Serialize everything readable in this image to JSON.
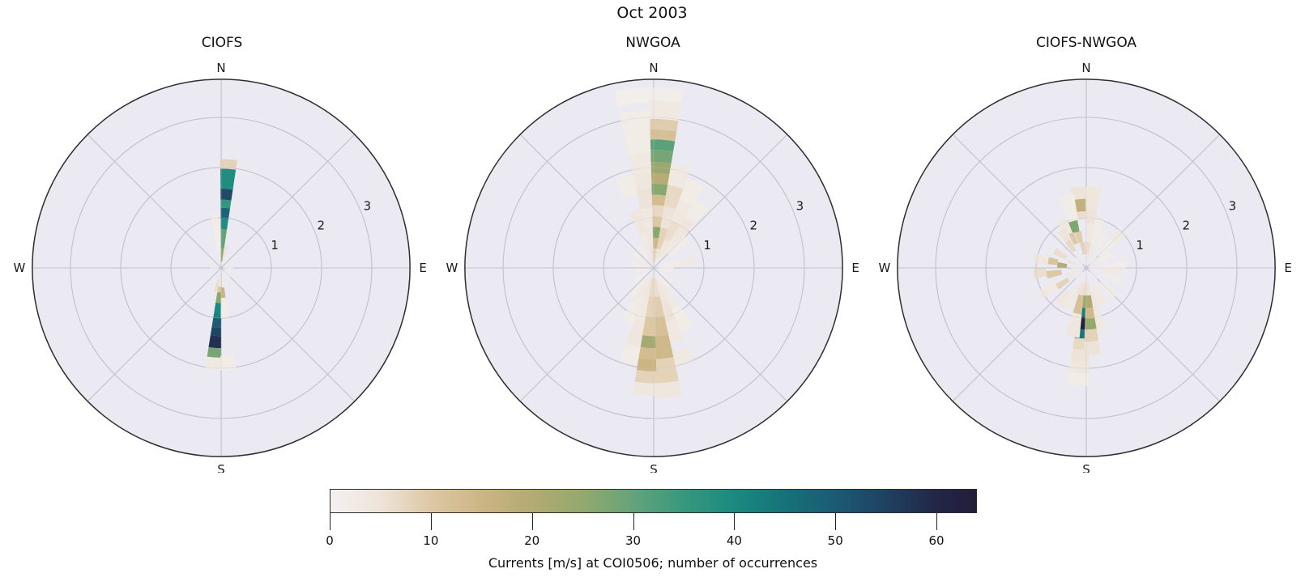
{
  "figure": {
    "suptitle": "Oct 2003"
  },
  "style": {
    "plot_bg": "#ebeaf2",
    "grid_color": "#c3c2cb",
    "ring_color": "#2e2e2e",
    "text_color": "#1a1a1a"
  },
  "colorbar": {
    "label": "Currents [m/s] at COI0506; number of occurrences",
    "ticks": [
      0,
      10,
      20,
      30,
      40,
      50,
      60
    ],
    "vmin": 0,
    "vmax": 64,
    "stops": [
      [
        0.0,
        "#f4f1f1"
      ],
      [
        0.08,
        "#eee3d8"
      ],
      [
        0.156,
        "#ddc8a4"
      ],
      [
        0.23,
        "#cdb685"
      ],
      [
        0.3125,
        "#b3aa72"
      ],
      [
        0.39,
        "#93a96d"
      ],
      [
        0.469,
        "#64a37a"
      ],
      [
        0.55,
        "#35987e"
      ],
      [
        0.625,
        "#1b8a80"
      ],
      [
        0.7,
        "#157379"
      ],
      [
        0.781,
        "#1c5b74"
      ],
      [
        0.86,
        "#1f4260"
      ],
      [
        0.9375,
        "#232647"
      ],
      [
        1.0,
        "#221e3a"
      ]
    ]
  },
  "chart_data": [
    {
      "type": "polar_heatmap_rose",
      "title": "CIOFS",
      "compass": [
        "N",
        "E",
        "S",
        "W"
      ],
      "r_ticks": [
        1,
        2,
        3
      ],
      "r_max": 3.76,
      "r_units": "m/s",
      "value_units": "occurrences",
      "bin_width_deg": 9,
      "cell_format": [
        "direction_deg",
        "r0",
        "r1",
        "count"
      ],
      "cells": [
        [
          4,
          0.0,
          0.12,
          5
        ],
        [
          4,
          0.12,
          0.39,
          25
        ],
        [
          4,
          0.39,
          0.77,
          30
        ],
        [
          4,
          0.77,
          0.98,
          39
        ],
        [
          4,
          0.98,
          1.2,
          48
        ],
        [
          4,
          1.2,
          1.36,
          36
        ],
        [
          4,
          1.36,
          1.58,
          53
        ],
        [
          4,
          1.58,
          1.98,
          39
        ],
        [
          4,
          1.98,
          2.17,
          8
        ],
        [
          353,
          0.75,
          1.05,
          2
        ],
        [
          353,
          0.35,
          0.75,
          1
        ],
        [
          13,
          0.15,
          0.45,
          5
        ],
        [
          184.5,
          0.0,
          0.2,
          4
        ],
        [
          184.5,
          0.2,
          0.37,
          3
        ],
        [
          184.5,
          0.37,
          0.49,
          10
        ],
        [
          184.5,
          0.49,
          0.7,
          26
        ],
        [
          184.5,
          0.7,
          0.89,
          40
        ],
        [
          184.5,
          0.89,
          1.0,
          41
        ],
        [
          184.5,
          1.0,
          1.19,
          50
        ],
        [
          184.5,
          1.19,
          1.36,
          54
        ],
        [
          184.5,
          1.36,
          1.6,
          58
        ],
        [
          184.5,
          1.6,
          1.79,
          28
        ],
        [
          184.5,
          1.79,
          2.03,
          3
        ],
        [
          176,
          0.39,
          0.6,
          15
        ],
        [
          176,
          0.6,
          1.0,
          2
        ],
        [
          176,
          1.75,
          2.05,
          2
        ],
        [
          193,
          0.22,
          0.5,
          6
        ],
        [
          90,
          0.05,
          0.25,
          1.5
        ],
        [
          270,
          0.05,
          0.22,
          1.5
        ],
        [
          300,
          0.08,
          0.28,
          2
        ],
        [
          135,
          0.08,
          0.25,
          1
        ]
      ]
    },
    {
      "type": "polar_heatmap_rose",
      "title": "NWGOA",
      "compass": [
        "N",
        "E",
        "S",
        "W"
      ],
      "r_ticks": [
        1,
        2,
        3
      ],
      "r_max": 3.76,
      "r_units": "m/s",
      "value_units": "occurrences",
      "bin_width_deg": 11,
      "cell_format": [
        "direction_deg",
        "r0",
        "r1",
        "count"
      ],
      "cells": [
        [
          4,
          0.0,
          0.17,
          8
        ],
        [
          4,
          0.17,
          0.39,
          8
        ],
        [
          4,
          0.39,
          0.6,
          14
        ],
        [
          4,
          0.6,
          0.82,
          26
        ],
        [
          4,
          0.82,
          1.03,
          10
        ],
        [
          4,
          1.03,
          1.25,
          7
        ],
        [
          4,
          1.25,
          1.46,
          13
        ],
        [
          4,
          1.46,
          1.68,
          26
        ],
        [
          4,
          1.68,
          1.89,
          19
        ],
        [
          4,
          1.89,
          2.11,
          24
        ],
        [
          4,
          2.11,
          2.35,
          28
        ],
        [
          4,
          2.35,
          2.56,
          31
        ],
        [
          4,
          2.56,
          2.76,
          12
        ],
        [
          4,
          2.76,
          2.97,
          9
        ],
        [
          4,
          2.97,
          3.34,
          3
        ],
        [
          4,
          3.34,
          3.59,
          1.5
        ],
        [
          353,
          0.0,
          0.4,
          5
        ],
        [
          353,
          0.4,
          0.8,
          4
        ],
        [
          353,
          0.8,
          1.2,
          3
        ],
        [
          353,
          1.2,
          1.6,
          5
        ],
        [
          353,
          1.6,
          1.9,
          4
        ],
        [
          353,
          1.9,
          2.3,
          3
        ],
        [
          353,
          2.3,
          2.75,
          2
        ],
        [
          353,
          2.75,
          3.15,
          2
        ],
        [
          353,
          3.3,
          3.6,
          1
        ],
        [
          342,
          0.3,
          0.7,
          3
        ],
        [
          342,
          0.7,
          1.2,
          4
        ],
        [
          342,
          1.5,
          1.9,
          2
        ],
        [
          326,
          0.2,
          0.55,
          2
        ],
        [
          304,
          0.2,
          0.5,
          2
        ],
        [
          281,
          0.15,
          0.45,
          2
        ],
        [
          259,
          0.1,
          0.35,
          1.5
        ],
        [
          236,
          0.1,
          0.4,
          1.5
        ],
        [
          15,
          0.17,
          0.39,
          5
        ],
        [
          15,
          0.39,
          0.82,
          8
        ],
        [
          15,
          0.82,
          1.25,
          5
        ],
        [
          15,
          1.25,
          1.68,
          7
        ],
        [
          15,
          1.68,
          2.1,
          3
        ],
        [
          26,
          0.2,
          0.6,
          4
        ],
        [
          26,
          0.6,
          1.0,
          6
        ],
        [
          26,
          1.0,
          1.45,
          3
        ],
        [
          26,
          1.45,
          1.9,
          2
        ],
        [
          37,
          0.3,
          0.7,
          3
        ],
        [
          37,
          0.7,
          1.2,
          4
        ],
        [
          37,
          1.2,
          1.6,
          2
        ],
        [
          49,
          0.4,
          0.9,
          2
        ],
        [
          79,
          0.15,
          0.5,
          1.5
        ],
        [
          79,
          0.5,
          0.85,
          3
        ],
        [
          90,
          0.1,
          0.4,
          1.5
        ],
        [
          101,
          0.1,
          0.35,
          1.5
        ],
        [
          124,
          0.15,
          0.45,
          2
        ],
        [
          146,
          0.2,
          0.5,
          2
        ],
        [
          184,
          0.0,
          0.2,
          5
        ],
        [
          184,
          0.2,
          0.58,
          7
        ],
        [
          184,
          0.58,
          0.98,
          8
        ],
        [
          184,
          0.98,
          1.36,
          10
        ],
        [
          184,
          1.36,
          1.6,
          22
        ],
        [
          184,
          1.6,
          1.82,
          13
        ],
        [
          184,
          1.82,
          2.06,
          15
        ],
        [
          184,
          2.06,
          2.3,
          8
        ],
        [
          184,
          2.3,
          2.54,
          4
        ],
        [
          173,
          0.2,
          0.58,
          6
        ],
        [
          173,
          0.58,
          0.98,
          9
        ],
        [
          173,
          0.98,
          1.36,
          12
        ],
        [
          173,
          1.36,
          1.82,
          14
        ],
        [
          173,
          1.82,
          2.3,
          8
        ],
        [
          173,
          2.3,
          2.6,
          4
        ],
        [
          162,
          0.3,
          0.7,
          4
        ],
        [
          162,
          0.7,
          1.1,
          5
        ],
        [
          162,
          1.1,
          1.55,
          3
        ],
        [
          162,
          1.7,
          2.0,
          3
        ],
        [
          151,
          0.4,
          0.9,
          3
        ],
        [
          151,
          0.9,
          1.4,
          2
        ],
        [
          195,
          0.2,
          0.6,
          4
        ],
        [
          195,
          0.6,
          1.1,
          3
        ],
        [
          195,
          1.1,
          1.6,
          4
        ],
        [
          195,
          1.6,
          1.95,
          2
        ],
        [
          207,
          0.3,
          0.8,
          3
        ],
        [
          207,
          0.8,
          1.2,
          2
        ],
        [
          218,
          0.3,
          0.7,
          2
        ]
      ]
    },
    {
      "type": "polar_heatmap_rose",
      "title": "CIOFS-NWGOA",
      "compass": [
        "N",
        "E",
        "S",
        "W"
      ],
      "r_ticks": [
        1,
        2,
        3
      ],
      "r_max": 3.76,
      "r_units": "m/s",
      "value_units": "occurrences",
      "bin_width_deg": 11,
      "cell_format": [
        "direction_deg",
        "r0",
        "r1",
        "count"
      ],
      "cells": [
        [
          354,
          0.97,
          1.13,
          6
        ],
        [
          354,
          1.13,
          1.38,
          17
        ],
        [
          354,
          1.38,
          1.62,
          5
        ],
        [
          351,
          0.27,
          0.52,
          8
        ],
        [
          347,
          0.52,
          0.74,
          9
        ],
        [
          344,
          0.74,
          0.97,
          27
        ],
        [
          345,
          0.97,
          1.5,
          2
        ],
        [
          335,
          0.52,
          0.76,
          10
        ],
        [
          333,
          0.76,
          1.1,
          3
        ],
        [
          327,
          0.5,
          0.9,
          5
        ],
        [
          325,
          0.4,
          0.65,
          7
        ],
        [
          5,
          0.27,
          0.52,
          6
        ],
        [
          5,
          0.52,
          0.89,
          3
        ],
        [
          5,
          0.89,
          1.13,
          5
        ],
        [
          5,
          1.13,
          1.62,
          4
        ],
        [
          16,
          0.2,
          0.5,
          3
        ],
        [
          16,
          0.5,
          1.0,
          2
        ],
        [
          30,
          0.4,
          0.75,
          2
        ],
        [
          45,
          0.35,
          0.75,
          1.5
        ],
        [
          45,
          0.75,
          1.0,
          3
        ],
        [
          60,
          0.3,
          0.6,
          2
        ],
        [
          85,
          0.3,
          0.8,
          1.5
        ],
        [
          95,
          0.3,
          0.7,
          3
        ],
        [
          110,
          0.35,
          0.75,
          2
        ],
        [
          135,
          0.4,
          0.8,
          2
        ],
        [
          155,
          0.3,
          0.8,
          3
        ],
        [
          168,
          0.5,
          0.9,
          4
        ],
        [
          168,
          0.9,
          1.3,
          3
        ],
        [
          298,
          0.45,
          0.72,
          6
        ],
        [
          290,
          0.2,
          0.4,
          5
        ],
        [
          281,
          0.58,
          0.77,
          11
        ],
        [
          280,
          0.77,
          1.05,
          4
        ],
        [
          276,
          0.39,
          0.58,
          19
        ],
        [
          264,
          0.8,
          1.05,
          6
        ],
        [
          260,
          0.5,
          0.8,
          10
        ],
        [
          250,
          0.2,
          0.42,
          4
        ],
        [
          240,
          0.69,
          1.05,
          3
        ],
        [
          237,
          0.42,
          0.69,
          8
        ],
        [
          217,
          0.6,
          0.9,
          4
        ],
        [
          205,
          0.4,
          0.9,
          3
        ],
        [
          184,
          0.3,
          0.55,
          6
        ],
        [
          184,
          0.55,
          0.8,
          24
        ],
        [
          184,
          0.8,
          0.98,
          43
        ],
        [
          184,
          0.98,
          1.23,
          62
        ],
        [
          184,
          1.23,
          1.41,
          44
        ],
        [
          184,
          1.41,
          1.63,
          7
        ],
        [
          184,
          1.63,
          1.87,
          5
        ],
        [
          184,
          1.87,
          2.11,
          4
        ],
        [
          184,
          2.11,
          2.35,
          2
        ],
        [
          176,
          0.3,
          0.55,
          5
        ],
        [
          176,
          0.55,
          0.8,
          20
        ],
        [
          176,
          0.8,
          1.01,
          14
        ],
        [
          176,
          1.01,
          1.23,
          25
        ],
        [
          176,
          1.23,
          1.47,
          8
        ],
        [
          176,
          1.47,
          1.74,
          5
        ],
        [
          191,
          0.55,
          0.93,
          12
        ],
        [
          191,
          0.93,
          1.4,
          4
        ],
        [
          195,
          0.3,
          0.55,
          5
        ],
        [
          0,
          0.05,
          0.27,
          4
        ],
        [
          90,
          0.05,
          0.3,
          2
        ],
        [
          180,
          0.05,
          0.3,
          4
        ],
        [
          270,
          0.05,
          0.3,
          3
        ],
        [
          45,
          0.1,
          0.3,
          2
        ],
        [
          135,
          0.1,
          0.3,
          2
        ],
        [
          225,
          0.1,
          0.3,
          2
        ],
        [
          315,
          0.1,
          0.3,
          2
        ]
      ]
    }
  ]
}
